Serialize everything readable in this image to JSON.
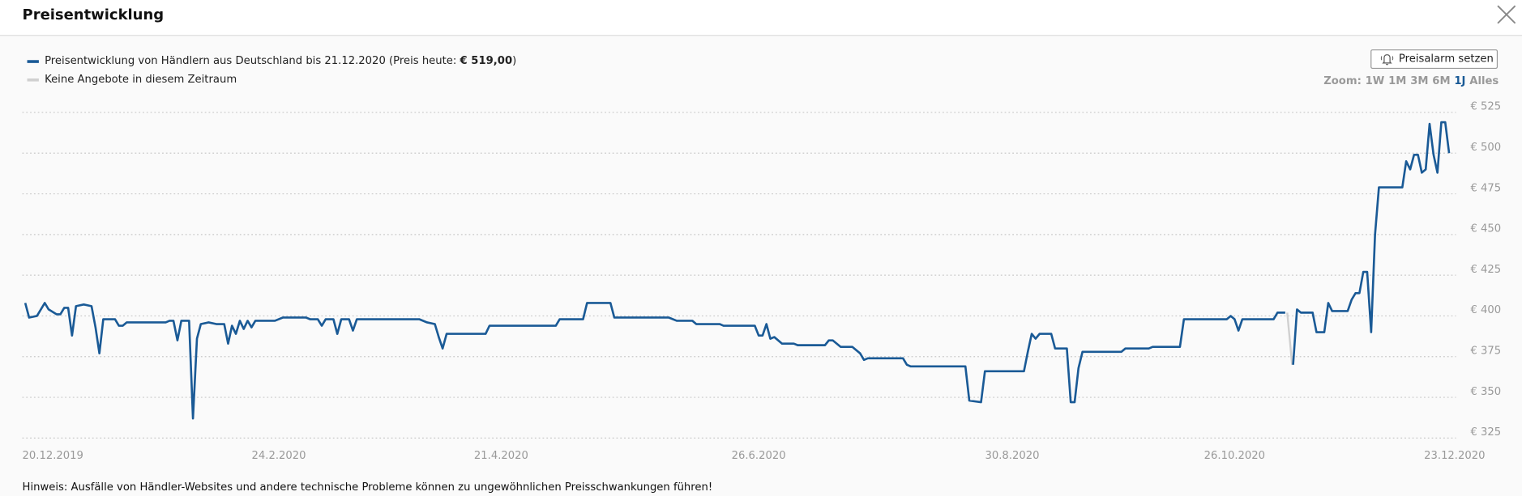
{
  "header": {
    "title": "Preisentwicklung"
  },
  "button": {
    "label": "Preisalarm setzen"
  },
  "zoom": {
    "label": "Zoom:",
    "options": [
      "1W",
      "1M",
      "3M",
      "6M",
      "1J",
      "Alles"
    ],
    "active": 4
  },
  "note": "Hinweis: Ausfälle von Händler-Websites und andere technische Probleme können zu ungewöhnlichen Preisschwankungen führen!",
  "chart_data": {
    "type": "line",
    "price_today_label": "(Preis heute:",
    "price_today": "€ 519,00",
    "price_today_end": ")",
    "gap_legend": {
      "name": "Keine Angebote in diesem Zeitraum",
      "color": "#d0d0d0"
    },
    "xlim": [
      "2019-12-20",
      "2020-12-23"
    ],
    "xticks": [
      {
        "value": "2019-12-20",
        "label": "20.12.2019"
      },
      {
        "value": "2020-02-24",
        "label": "24.2.2020"
      },
      {
        "value": "2020-04-21",
        "label": "21.4.2020"
      },
      {
        "value": "2020-06-26",
        "label": "26.6.2020"
      },
      {
        "value": "2020-08-30",
        "label": "30.8.2020"
      },
      {
        "value": "2020-10-26",
        "label": "26.10.2020"
      },
      {
        "value": "2020-12-23",
        "label": "23.12.2020"
      }
    ],
    "ylim": [
      320,
      530
    ],
    "yticks": [
      {
        "value": 325,
        "label": "€ 325"
      },
      {
        "value": 350,
        "label": "€ 350"
      },
      {
        "value": 375,
        "label": "€ 375"
      },
      {
        "value": 400,
        "label": "€ 400"
      },
      {
        "value": 425,
        "label": "€ 425"
      },
      {
        "value": 450,
        "label": "€ 450"
      },
      {
        "value": 475,
        "label": "€ 475"
      },
      {
        "value": 500,
        "label": "€ 500"
      },
      {
        "value": 525,
        "label": "€ 525"
      }
    ],
    "grid": true,
    "x": [
      "2019-12-21",
      "2019-12-22",
      "2019-12-24",
      "2019-12-26",
      "2019-12-27",
      "2019-12-29",
      "2019-12-30",
      "2019-12-31",
      "2020-01-01",
      "2020-01-02",
      "2020-01-03",
      "2020-01-05",
      "2020-01-07",
      "2020-01-08",
      "2020-01-09",
      "2020-01-10",
      "2020-01-13",
      "2020-01-14",
      "2020-01-15",
      "2020-01-16",
      "2020-01-26",
      "2020-01-27",
      "2020-01-28",
      "2020-01-29",
      "2020-01-30",
      "2020-02-01",
      "2020-02-02",
      "2020-02-03",
      "2020-02-04",
      "2020-02-06",
      "2020-02-08",
      "2020-02-10",
      "2020-02-11",
      "2020-02-12",
      "2020-02-13",
      "2020-02-14",
      "2020-02-15",
      "2020-02-16",
      "2020-02-17",
      "2020-02-18",
      "2020-02-23",
      "2020-02-25",
      "2020-03-02",
      "2020-03-03",
      "2020-03-05",
      "2020-03-06",
      "2020-03-07",
      "2020-03-09",
      "2020-03-10",
      "2020-03-11",
      "2020-03-13",
      "2020-03-14",
      "2020-03-15",
      "2020-03-31",
      "2020-04-02",
      "2020-04-04",
      "2020-04-05",
      "2020-04-06",
      "2020-04-07",
      "2020-04-17",
      "2020-04-18",
      "2020-05-05",
      "2020-05-06",
      "2020-05-12",
      "2020-05-13",
      "2020-05-19",
      "2020-05-20",
      "2020-06-03",
      "2020-06-05",
      "2020-06-09",
      "2020-06-10",
      "2020-06-16",
      "2020-06-17",
      "2020-06-25",
      "2020-06-26",
      "2020-06-27",
      "2020-06-28",
      "2020-06-29",
      "2020-06-30",
      "2020-07-02",
      "2020-07-05",
      "2020-07-06",
      "2020-07-13",
      "2020-07-14",
      "2020-07-15",
      "2020-07-17",
      "2020-07-20",
      "2020-07-22",
      "2020-07-23",
      "2020-07-24",
      "2020-08-02",
      "2020-08-03",
      "2020-08-04",
      "2020-08-18",
      "2020-08-19",
      "2020-08-22",
      "2020-08-23",
      "2020-09-02",
      "2020-09-03",
      "2020-09-04",
      "2020-09-05",
      "2020-09-06",
      "2020-09-09",
      "2020-09-10",
      "2020-09-13",
      "2020-09-14",
      "2020-09-15",
      "2020-09-16",
      "2020-09-17",
      "2020-09-27",
      "2020-09-28",
      "2020-10-04",
      "2020-10-05",
      "2020-10-12",
      "2020-10-13",
      "2020-10-24",
      "2020-10-25",
      "2020-10-26",
      "2020-10-27",
      "2020-10-28",
      "2020-11-05",
      "2020-11-06",
      "2020-11-08",
      "2020-11-09",
      "2020-11-10",
      "2020-11-11",
      "2020-11-12",
      "2020-11-15",
      "2020-11-16",
      "2020-11-18",
      "2020-11-19",
      "2020-11-20",
      "2020-11-24",
      "2020-11-25",
      "2020-11-26",
      "2020-11-27",
      "2020-11-28",
      "2020-11-29",
      "2020-11-30",
      "2020-12-01",
      "2020-12-02",
      "2020-12-08",
      "2020-12-09",
      "2020-12-10",
      "2020-12-11",
      "2020-12-12",
      "2020-12-13",
      "2020-12-14",
      "2020-12-15",
      "2020-12-16",
      "2020-12-17",
      "2020-12-18",
      "2020-12-19",
      "2020-12-20"
    ],
    "series": [
      {
        "name": "Preisentwicklung von Händlern aus Deutschland bis 21.12.2020",
        "color": "#1a5a96",
        "values": [
          408,
          399,
          400,
          408,
          404,
          401,
          401,
          405,
          405,
          388,
          406,
          407,
          406,
          393,
          377,
          398,
          398,
          394,
          394,
          396,
          396,
          397,
          397,
          385,
          397,
          397,
          337,
          386,
          395,
          396,
          395,
          395,
          383,
          394,
          389,
          397,
          392,
          397,
          393,
          397,
          397,
          399,
          399,
          398,
          398,
          394,
          398,
          398,
          389,
          398,
          398,
          391,
          398,
          398,
          396,
          395,
          387,
          380,
          389,
          389,
          394,
          394,
          398,
          398,
          408,
          408,
          399,
          399,
          397,
          397,
          395,
          395,
          394,
          394,
          388,
          388,
          395,
          386,
          387,
          383,
          383,
          382,
          382,
          385,
          385,
          381,
          381,
          377,
          373,
          374,
          374,
          370,
          369,
          369,
          348,
          347,
          366,
          366,
          378,
          389,
          386,
          389,
          389,
          380,
          380,
          347,
          347,
          368,
          378,
          378,
          380,
          380,
          381,
          381,
          398,
          398,
          400,
          398,
          391,
          398,
          398,
          402,
          402,
          null,
          370,
          404,
          402,
          402,
          390,
          390,
          408,
          403,
          403,
          410,
          414,
          414,
          427,
          427,
          390,
          450,
          479,
          479,
          495,
          490,
          499,
          499,
          488,
          490,
          518,
          499,
          488,
          519,
          519,
          500
        ]
      }
    ]
  }
}
